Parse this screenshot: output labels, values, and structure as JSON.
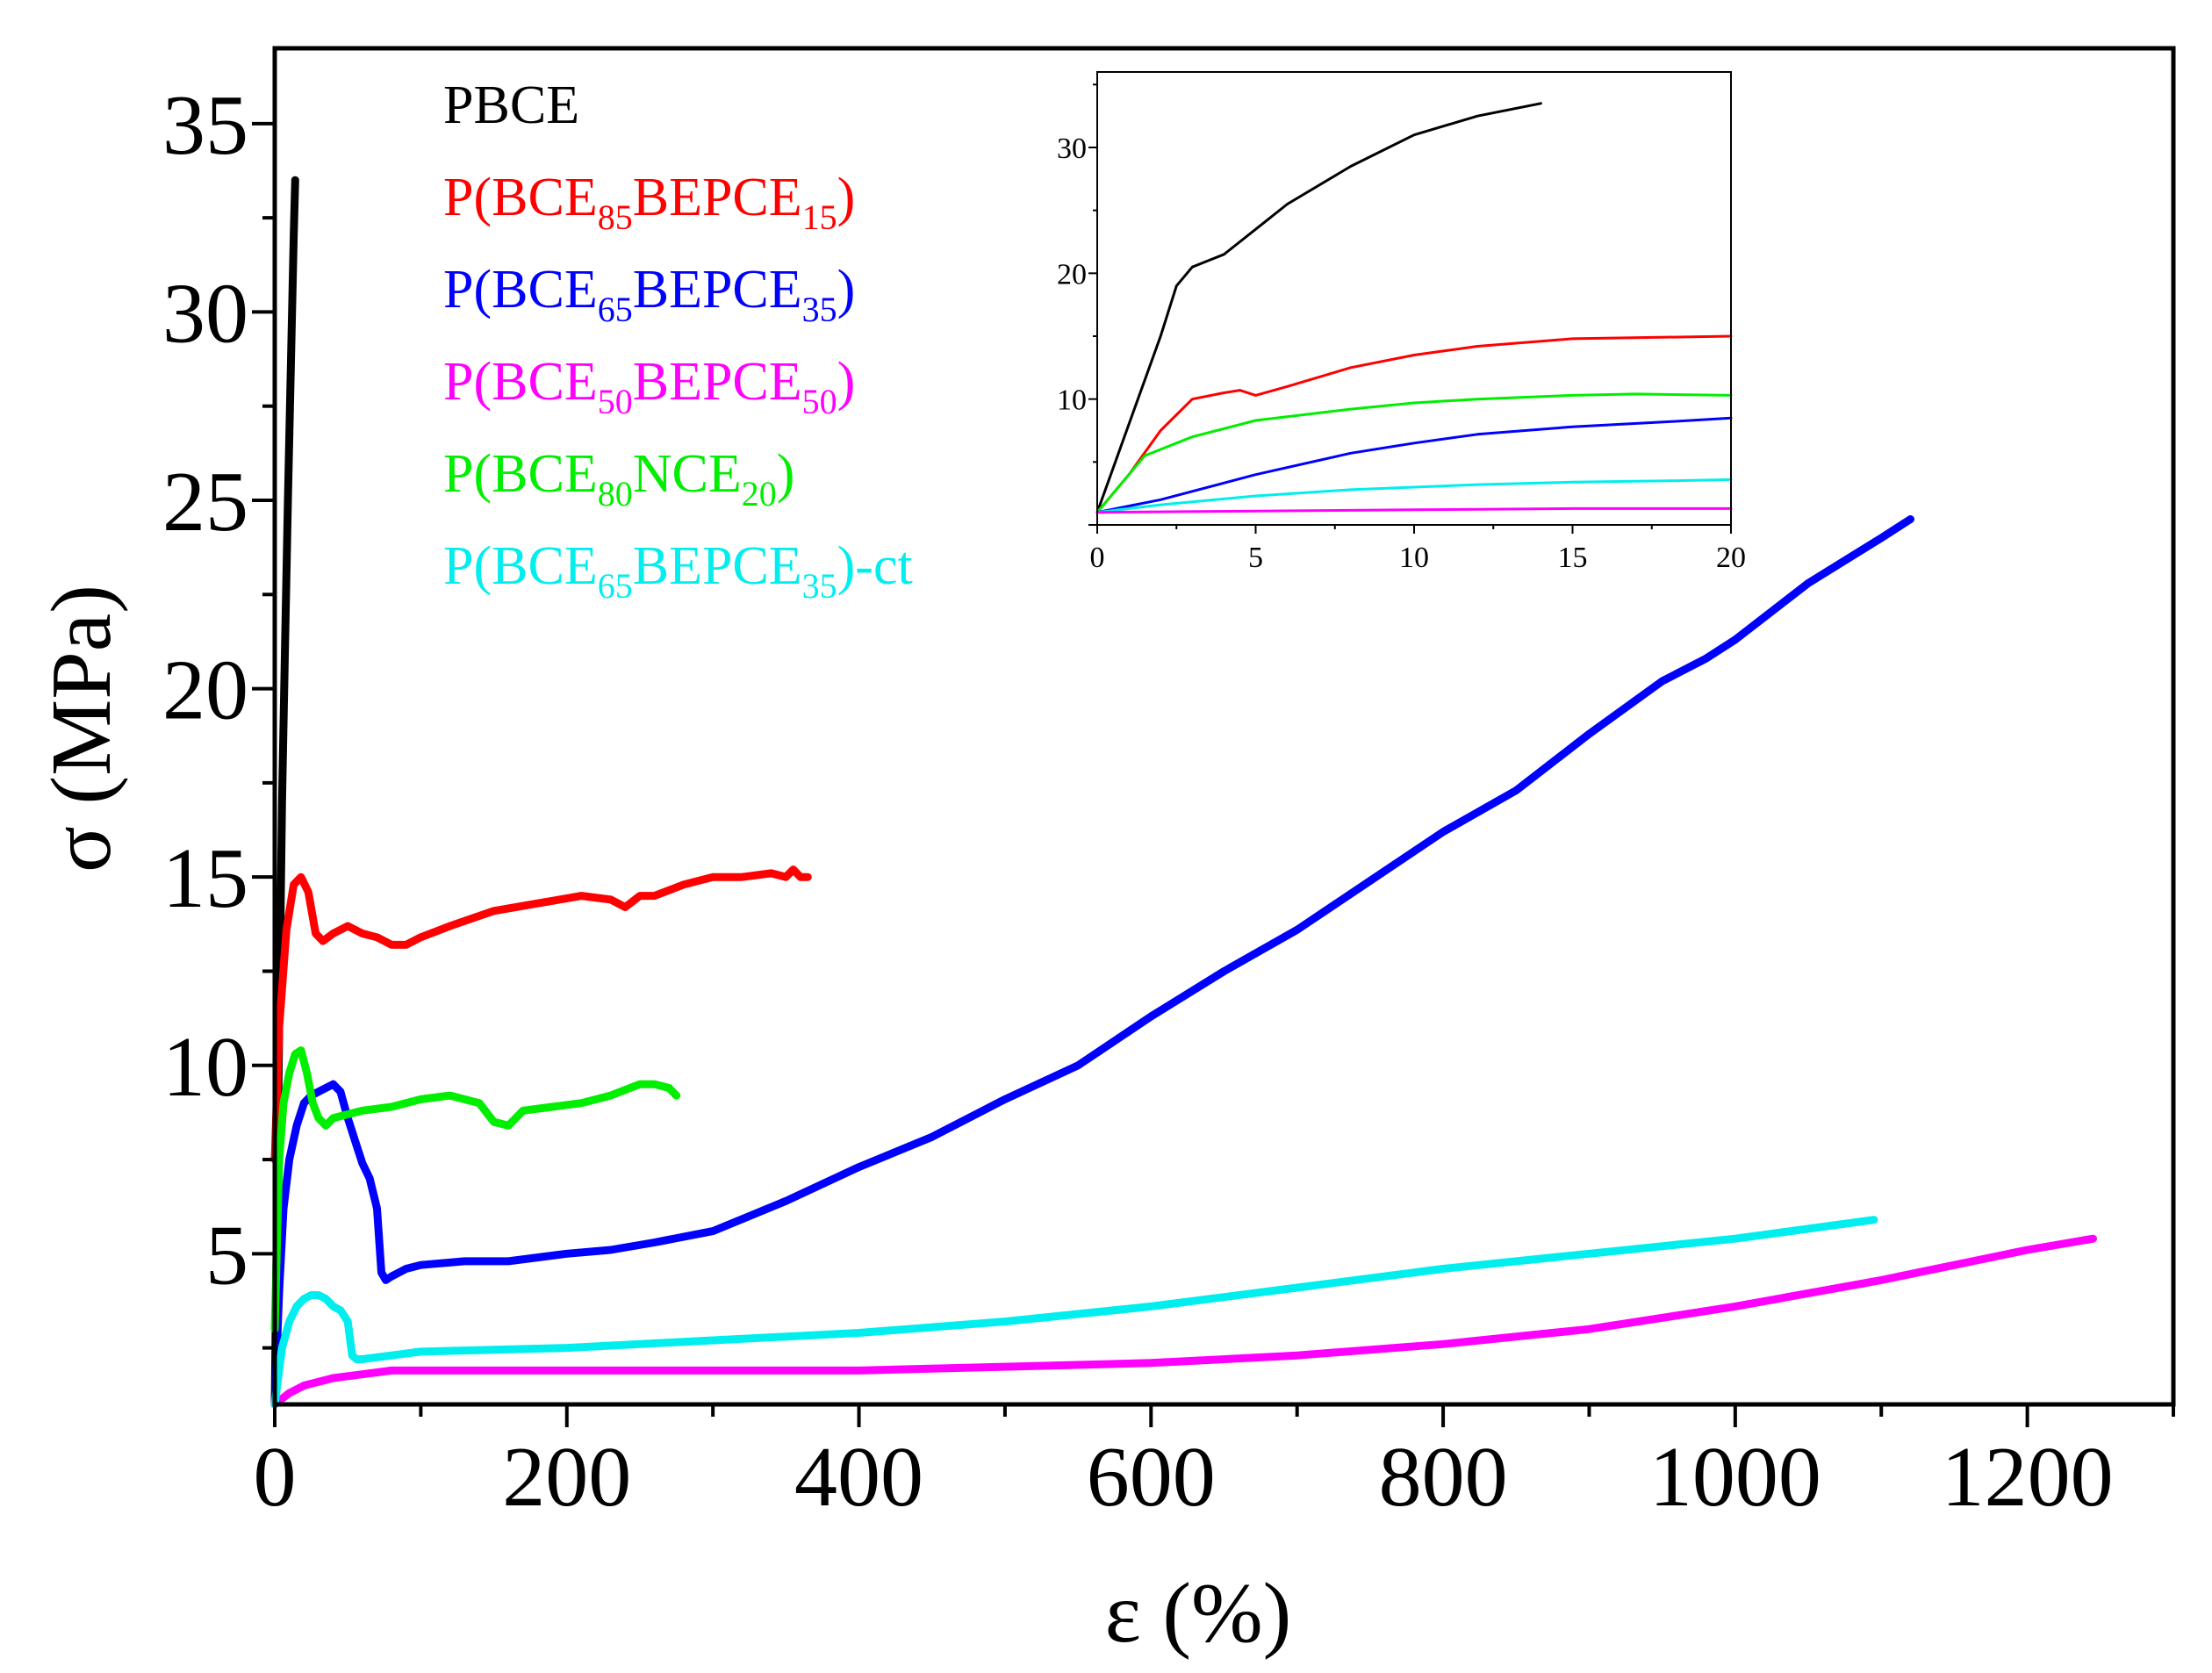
{
  "chart_data": [
    {
      "id": "main",
      "type": "line",
      "title": "",
      "xlabel": "ε (%)",
      "ylabel": "σ (MPa)",
      "xlim": [
        0,
        1300
      ],
      "ylim": [
        1,
        37
      ],
      "xticks": [
        0,
        200,
        400,
        600,
        800,
        1000,
        1200
      ],
      "yticks": [
        5,
        10,
        15,
        20,
        25,
        30,
        35
      ],
      "grid": false,
      "legend_position": "top-left",
      "series": [
        {
          "name": "PBCE",
          "legend": [
            {
              "t": "PBCE",
              "s": false
            }
          ],
          "color": "#000000",
          "x": [
            0,
            1.5,
            3,
            5,
            7,
            9,
            11,
            13,
            14
          ],
          "y": [
            1,
            6,
            11,
            17,
            21,
            25,
            28.5,
            32,
            33.5
          ]
        },
        {
          "name": "P(BCE85BEPCE15)",
          "legend": [
            {
              "t": "P(BCE",
              "s": false
            },
            {
              "t": "85",
              "s": true
            },
            {
              "t": "BEPCE",
              "s": false
            },
            {
              "t": "15",
              "s": true
            },
            {
              "t": ")",
              "s": false
            }
          ],
          "color": "#ff0000",
          "x": [
            0,
            3,
            8,
            13,
            18,
            23,
            28,
            33,
            40,
            50,
            60,
            70,
            80,
            90,
            100,
            120,
            150,
            180,
            210,
            230,
            240,
            250,
            260,
            280,
            300,
            320,
            340,
            350,
            355,
            360,
            365
          ],
          "y": [
            7.5,
            11,
            13.6,
            14.8,
            15.0,
            14.6,
            13.5,
            13.3,
            13.5,
            13.7,
            13.5,
            13.4,
            13.2,
            13.2,
            13.4,
            13.7,
            14.1,
            14.3,
            14.5,
            14.4,
            14.2,
            14.5,
            14.5,
            14.8,
            15.0,
            15.0,
            15.1,
            15.0,
            15.2,
            15.0,
            15.0
          ]
        },
        {
          "name": "P(BCE65BEPCE35)",
          "legend": [
            {
              "t": "P(BCE",
              "s": false
            },
            {
              "t": "65",
              "s": true
            },
            {
              "t": "BEPCE",
              "s": false
            },
            {
              "t": "35",
              "s": true
            },
            {
              "t": ")",
              "s": false
            }
          ],
          "color": "#0000ff",
          "x": [
            0,
            3,
            6,
            10,
            15,
            20,
            25,
            30,
            35,
            40,
            45,
            50,
            55,
            60,
            65,
            70,
            73,
            76,
            80,
            90,
            100,
            130,
            160,
            200,
            230,
            260,
            300,
            350,
            400,
            450,
            500,
            550,
            600,
            650,
            700,
            750,
            800,
            850,
            900,
            950,
            980,
            1000,
            1050,
            1100,
            1120
          ],
          "y": [
            1,
            4,
            6.2,
            7.5,
            8.4,
            9.0,
            9.2,
            9.3,
            9.4,
            9.5,
            9.3,
            8.6,
            8.0,
            7.4,
            7.0,
            6.2,
            4.5,
            4.3,
            4.4,
            4.6,
            4.7,
            4.8,
            4.8,
            5.0,
            5.1,
            5.3,
            5.6,
            6.4,
            7.3,
            8.1,
            9.1,
            10.0,
            11.3,
            12.5,
            13.6,
            14.9,
            16.2,
            17.3,
            18.8,
            20.2,
            20.8,
            21.3,
            22.8,
            24.0,
            24.5
          ]
        },
        {
          "name": "P(BCE50BEPCE50)",
          "legend": [
            {
              "t": "P(BCE",
              "s": false
            },
            {
              "t": "50",
              "s": true
            },
            {
              "t": "BEPCE",
              "s": false
            },
            {
              "t": "50",
              "s": true
            },
            {
              "t": ")",
              "s": false
            }
          ],
          "color": "#ff00ff",
          "x": [
            0,
            10,
            20,
            40,
            60,
            80,
            100,
            150,
            200,
            300,
            400,
            500,
            600,
            700,
            800,
            900,
            1000,
            1100,
            1200,
            1245
          ],
          "y": [
            1,
            1.3,
            1.5,
            1.7,
            1.8,
            1.9,
            1.9,
            1.9,
            1.9,
            1.9,
            1.9,
            2.0,
            2.1,
            2.3,
            2.6,
            3.0,
            3.6,
            4.3,
            5.1,
            5.4
          ]
        },
        {
          "name": "P(BCE80NCE20)",
          "legend": [
            {
              "t": "P(BCE",
              "s": false
            },
            {
              "t": "80",
              "s": true
            },
            {
              "t": "NCE",
              "s": false
            },
            {
              "t": "20",
              "s": true
            },
            {
              "t": ")",
              "s": false
            }
          ],
          "color": "#00ee00",
          "x": [
            0,
            3,
            6,
            10,
            14,
            18,
            22,
            26,
            30,
            35,
            40,
            50,
            60,
            80,
            100,
            120,
            140,
            150,
            160,
            170,
            190,
            210,
            230,
            250,
            260,
            270,
            275
          ],
          "y": [
            3,
            7.5,
            9.0,
            9.8,
            10.3,
            10.4,
            9.8,
            9.0,
            8.6,
            8.4,
            8.6,
            8.7,
            8.8,
            8.9,
            9.1,
            9.2,
            9.0,
            8.5,
            8.4,
            8.8,
            8.9,
            9.0,
            9.2,
            9.5,
            9.5,
            9.4,
            9.2
          ]
        },
        {
          "name": "P(BCE65BEPCE35)-ct",
          "legend": [
            {
              "t": "P(BCE",
              "s": false
            },
            {
              "t": "65",
              "s": true
            },
            {
              "t": "BEPCE",
              "s": false
            },
            {
              "t": "35",
              "s": true
            },
            {
              "t": ")-ct",
              "s": false
            }
          ],
          "color": "#00eeee",
          "x": [
            0,
            5,
            10,
            15,
            20,
            25,
            30,
            35,
            40,
            45,
            50,
            53,
            56,
            60,
            80,
            100,
            200,
            300,
            400,
            500,
            600,
            700,
            800,
            900,
            1000,
            1095
          ],
          "y": [
            1,
            2.5,
            3.2,
            3.6,
            3.8,
            3.9,
            3.9,
            3.8,
            3.6,
            3.5,
            3.2,
            2.3,
            2.2,
            2.2,
            2.3,
            2.4,
            2.5,
            2.7,
            2.9,
            3.2,
            3.6,
            4.1,
            4.6,
            5.0,
            5.4,
            5.9
          ]
        }
      ]
    },
    {
      "id": "inset",
      "type": "line",
      "title": "",
      "xlabel": "",
      "ylabel": "",
      "xlim": [
        0,
        20
      ],
      "ylim": [
        0,
        36
      ],
      "xticks": [
        0,
        5,
        10,
        15,
        20
      ],
      "yticks": [
        10,
        20,
        30
      ],
      "grid": false,
      "series": [
        {
          "name": "PBCE",
          "color": "#000000",
          "x": [
            0,
            1,
            2,
            2.5,
            3,
            3.5,
            4,
            5,
            6,
            8,
            10,
            12,
            14
          ],
          "y": [
            1,
            8,
            15,
            19,
            20.5,
            21,
            21.5,
            23.5,
            25.5,
            28.5,
            31,
            32.5,
            33.5
          ]
        },
        {
          "name": "P(BCE85BEPCE15)",
          "color": "#ff0000",
          "x": [
            0,
            1,
            2,
            3,
            4,
            4.5,
            5,
            6,
            8,
            10,
            12,
            15,
            20
          ],
          "y": [
            1,
            4,
            7.5,
            10,
            10.5,
            10.7,
            10.3,
            11,
            12.5,
            13.5,
            14.2,
            14.8,
            15
          ]
        },
        {
          "name": "P(BCE80NCE20)",
          "color": "#00ee00",
          "x": [
            0,
            1,
            1.5,
            2,
            3,
            5,
            8,
            10,
            12,
            15,
            17,
            20
          ],
          "y": [
            1,
            4,
            5.5,
            6,
            7,
            8.3,
            9.2,
            9.7,
            10,
            10.3,
            10.4,
            10.3
          ]
        },
        {
          "name": "P(BCE65BEPCE35)",
          "color": "#0000ff",
          "x": [
            0,
            2,
            5,
            8,
            10,
            12,
            15,
            18,
            20
          ],
          "y": [
            1,
            2,
            4,
            5.7,
            6.5,
            7.2,
            7.8,
            8.2,
            8.5
          ]
        },
        {
          "name": "P(BCE65BEPCE35)-ct",
          "color": "#00eeee",
          "x": [
            0,
            2,
            5,
            8,
            10,
            12,
            15,
            18,
            20
          ],
          "y": [
            1,
            1.6,
            2.3,
            2.8,
            3.0,
            3.2,
            3.4,
            3.5,
            3.6
          ]
        },
        {
          "name": "P(BCE50BEPCE50)",
          "color": "#ff00ff",
          "x": [
            0,
            5,
            10,
            15,
            20
          ],
          "y": [
            1,
            1.1,
            1.2,
            1.3,
            1.3
          ]
        }
      ]
    }
  ]
}
